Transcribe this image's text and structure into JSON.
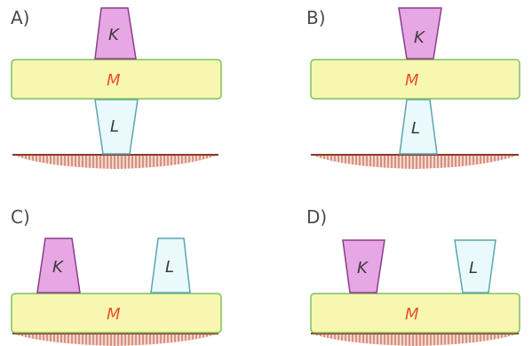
{
  "colors": {
    "block_k_fill": "#e7a6e4",
    "block_k_stroke": "#8a3e8a",
    "block_l_fill": "#eaf9fb",
    "block_l_stroke": "#5aa6b2",
    "block_m_fill": "#f7f7b1",
    "block_m_stroke": "#7cc35a",
    "ground": "#c9755e",
    "label_m": "#e8532a"
  },
  "options": [
    {
      "id": "A",
      "label": "A)",
      "k": "K",
      "m": "M",
      "l": "L"
    },
    {
      "id": "B",
      "label": "B)",
      "k": "K",
      "m": "M",
      "l": "L"
    },
    {
      "id": "C",
      "label": "C)",
      "k": "K",
      "m": "M",
      "l": "L"
    },
    {
      "id": "D",
      "label": "D)",
      "k": "K",
      "m": "M",
      "l": "L"
    }
  ]
}
